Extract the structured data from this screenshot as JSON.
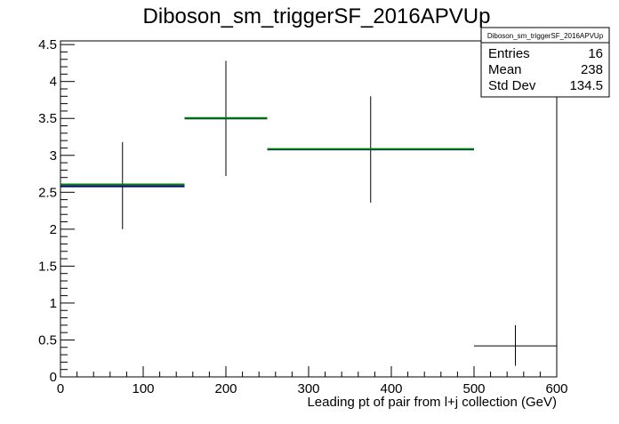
{
  "chart_data": {
    "type": "histogram",
    "title": "Diboson_sm_triggerSF_2016APVUp",
    "xlabel": "Leading pt of pair from l+j collection (GeV)",
    "ylabel": "",
    "xlim": [
      0,
      600
    ],
    "ylim": [
      0,
      4.55
    ],
    "x_ticks": [
      0,
      100,
      200,
      300,
      400,
      500,
      600
    ],
    "y_ticks": [
      0,
      0.5,
      1,
      1.5,
      2,
      2.5,
      3,
      3.5,
      4,
      4.5
    ],
    "grid": false,
    "legend": "none",
    "bins": [
      {
        "x_low": 0,
        "x_high": 150,
        "x_center": 75,
        "value": 2.6,
        "value_secondary": 2.58,
        "err_low": 2.0,
        "err_high": 3.18
      },
      {
        "x_low": 150,
        "x_high": 250,
        "x_center": 200,
        "value": 3.5,
        "value_secondary": 3.5,
        "err_low": 2.72,
        "err_high": 4.28
      },
      {
        "x_low": 250,
        "x_high": 500,
        "x_center": 375,
        "value": 3.08,
        "value_secondary": 3.08,
        "err_low": 2.36,
        "err_high": 3.8
      },
      {
        "x_low": 500,
        "x_high": 600,
        "x_center": 550,
        "value": 0.42,
        "value_secondary": null,
        "err_low": 0.15,
        "err_high": 0.7
      }
    ],
    "colors": {
      "primary": "#008000",
      "secondary": "#000080",
      "error": "#000000"
    }
  },
  "stats_box": {
    "title": "Diboson_sm_triggerSF_2016APVUp",
    "rows": [
      {
        "label": "Entries",
        "value": "16"
      },
      {
        "label": "Mean",
        "value": "238"
      },
      {
        "label": "Std Dev",
        "value": "134.5"
      }
    ]
  }
}
